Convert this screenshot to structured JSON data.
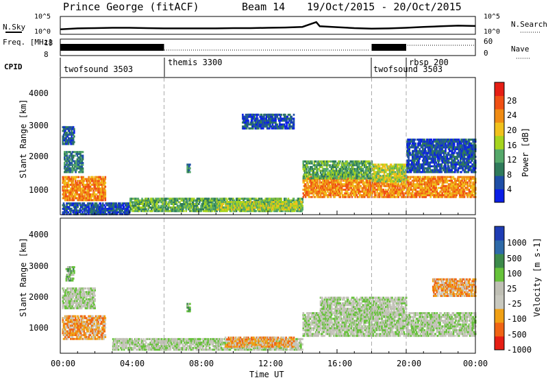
{
  "header": {
    "station": "Prince George (fitACF)",
    "beam": "Beam 14",
    "date_range": "19/Oct/2015 - 20/Oct/2015"
  },
  "colors": {
    "power_scale": [
      "#0a1ee6",
      "#1e4ea6",
      "#2f7a5b",
      "#55a86a",
      "#a6d41e",
      "#f0c11c",
      "#f08c14",
      "#f05014",
      "#e61e14"
    ],
    "velocity_scale": [
      "#1e3cb4",
      "#2e6aa8",
      "#3c8a4a",
      "#66c23a",
      "#bfbfb4",
      "#c8c8be",
      "#f0a014",
      "#f06414",
      "#e61e14"
    ]
  },
  "chart_data": [
    {
      "type": "line",
      "name": "sky-noise-panel",
      "left_label": "N.Sky",
      "right_label": "N.Search",
      "left_ticks": [
        "10^5",
        "10^0"
      ],
      "right_ticks": [
        "10^5",
        "10^0"
      ],
      "x_hours": [
        0,
        1,
        2,
        3,
        4,
        5,
        6,
        7,
        8,
        9,
        10,
        11,
        12,
        13,
        14,
        14.8,
        15,
        16,
        17,
        18,
        19,
        20,
        21,
        22,
        23,
        24
      ],
      "log_values": [
        1.2,
        1.5,
        1.6,
        1.7,
        1.7,
        1.6,
        1.5,
        1.5,
        1.5,
        1.5,
        1.6,
        1.6,
        1.7,
        1.8,
        2.0,
        3.6,
        2.2,
        1.9,
        1.6,
        1.4,
        1.5,
        1.7,
        2.0,
        2.2,
        2.4,
        2.3
      ],
      "ylim": [
        0,
        5
      ]
    },
    {
      "type": "line",
      "name": "frequency-nave-panel",
      "left_label": "Freq. [MHz]",
      "right_label": "Nave",
      "left_ticks": [
        "18",
        "8"
      ],
      "right_ticks": [
        "60",
        "0"
      ],
      "freq_blocks": [
        [
          0,
          6
        ],
        [
          18,
          20
        ]
      ]
    },
    {
      "type": "table",
      "name": "cpid-panel",
      "label": "CPID",
      "segments": [
        {
          "start": 0,
          "end": 6,
          "label": "twofsound 3503"
        },
        {
          "start": 6,
          "end": 18,
          "label": "themis 3300"
        },
        {
          "start": 18,
          "end": 20,
          "label": "twofsound 3503"
        },
        {
          "start": 20,
          "end": 24,
          "label": "rbsp 200"
        }
      ]
    },
    {
      "type": "heatmap",
      "name": "power-panel",
      "ylabel": "Slant Range [km]",
      "yticks": [
        "1000",
        "2000",
        "3000",
        "4000"
      ],
      "ylim": [
        200,
        4600
      ],
      "colorbar_label": "Power [dB]",
      "colorbar_ticks": [
        "4",
        "8",
        "12",
        "16",
        "20",
        "24",
        "28"
      ],
      "regions": [
        {
          "t0": 0.1,
          "t1": 2.6,
          "r0": 700,
          "r1": 1500,
          "level": 6
        },
        {
          "t0": 0.2,
          "t1": 1.3,
          "r0": 1600,
          "r1": 2300,
          "level": 2
        },
        {
          "t0": 0.1,
          "t1": 0.8,
          "r0": 2500,
          "r1": 3100,
          "level": 1
        },
        {
          "t0": 0.1,
          "t1": 4.0,
          "r0": 250,
          "r1": 650,
          "level": 1
        },
        {
          "t0": 4.0,
          "t1": 14.0,
          "r0": 350,
          "r1": 800,
          "level": 3
        },
        {
          "t0": 9.0,
          "t1": 14.0,
          "r0": 400,
          "r1": 700,
          "level": 4
        },
        {
          "t0": 14.0,
          "t1": 24.0,
          "r0": 800,
          "r1": 1500,
          "level": 6
        },
        {
          "t0": 14.0,
          "t1": 18.0,
          "r0": 1400,
          "r1": 2000,
          "level": 3
        },
        {
          "t0": 18.0,
          "t1": 20.0,
          "r0": 1300,
          "r1": 1900,
          "level": 4
        },
        {
          "t0": 20.0,
          "t1": 24.0,
          "r0": 1600,
          "r1": 2700,
          "level": 1
        },
        {
          "t0": 7.3,
          "t1": 7.5,
          "r0": 1600,
          "r1": 1900,
          "level": 2
        },
        {
          "t0": 10.5,
          "t1": 13.5,
          "r0": 3000,
          "r1": 3500,
          "level": 1
        }
      ]
    },
    {
      "type": "heatmap",
      "name": "velocity-panel",
      "ylabel": "Slant Range [km]",
      "yticks": [
        "1000",
        "2000",
        "3000",
        "4000"
      ],
      "ylim": [
        200,
        4600
      ],
      "colorbar_label": "Velocity [m s-1]",
      "colorbar_ticks": [
        "1000",
        "500",
        "100",
        "25",
        "-25",
        "-100",
        "-500",
        "-1000"
      ],
      "regions": [
        {
          "t0": 0.1,
          "t1": 2.6,
          "r0": 700,
          "r1": 1500,
          "level": 6
        },
        {
          "t0": 0.1,
          "t1": 2.0,
          "r0": 1700,
          "r1": 2400,
          "level": 4
        },
        {
          "t0": 0.3,
          "t1": 0.8,
          "r0": 2600,
          "r1": 3100,
          "level": 3
        },
        {
          "t0": 3.0,
          "t1": 14.0,
          "r0": 350,
          "r1": 750,
          "level": 4
        },
        {
          "t0": 9.5,
          "t1": 13.5,
          "r0": 450,
          "r1": 800,
          "level": 6
        },
        {
          "t0": 14.0,
          "t1": 24.0,
          "r0": 800,
          "r1": 1600,
          "level": 4
        },
        {
          "t0": 15.0,
          "t1": 20.0,
          "r0": 1500,
          "r1": 2100,
          "level": 4
        },
        {
          "t0": 21.5,
          "t1": 24.0,
          "r0": 2100,
          "r1": 2700,
          "level": 6
        },
        {
          "t0": 7.3,
          "t1": 7.5,
          "r0": 1600,
          "r1": 1900,
          "level": 3
        }
      ]
    }
  ],
  "time_axis": {
    "ticks": [
      "00:00",
      "04:00",
      "08:00",
      "12:00",
      "16:00",
      "20:00",
      "00:00"
    ],
    "label": "Time UT",
    "range_hours": [
      0,
      24
    ],
    "cpid_boundaries": [
      6,
      18,
      20
    ]
  }
}
